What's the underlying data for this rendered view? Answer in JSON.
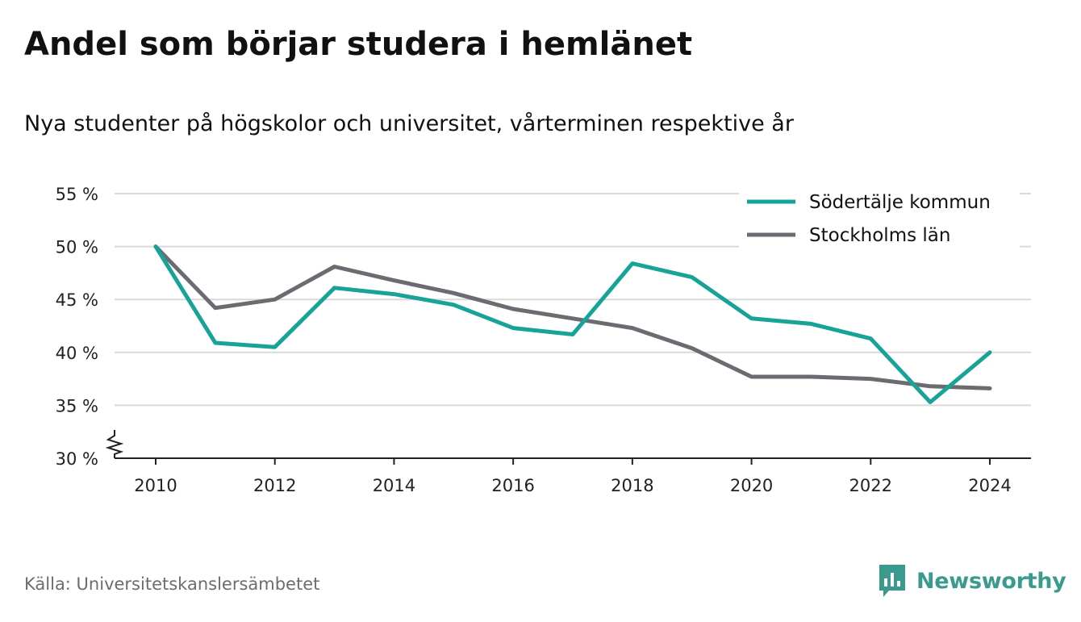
{
  "chart_data": {
    "type": "line",
    "title": "Andel som börjar studera i hemlänet",
    "subtitle": "Nya studenter på högskolor och universitet, vårterminen respektive år",
    "x": [
      2010,
      2011,
      2012,
      2013,
      2014,
      2015,
      2016,
      2017,
      2018,
      2019,
      2020,
      2021,
      2022,
      2023,
      2024
    ],
    "series": [
      {
        "name": "Södertälje kommun",
        "color": "#17a398",
        "values": [
          50.0,
          40.9,
          40.5,
          46.1,
          45.5,
          44.5,
          42.3,
          41.7,
          48.4,
          47.1,
          43.2,
          42.7,
          41.3,
          35.3,
          40.0
        ]
      },
      {
        "name": "Stockholms län",
        "color": "#6c6b72",
        "values": [
          50.0,
          44.2,
          45.0,
          48.1,
          46.8,
          45.6,
          44.1,
          43.2,
          42.3,
          40.4,
          37.7,
          37.7,
          37.5,
          36.8,
          36.6
        ]
      }
    ],
    "xticks": [
      2010,
      2012,
      2014,
      2016,
      2018,
      2020,
      2022,
      2024
    ],
    "yticks": [
      30,
      35,
      40,
      45,
      50,
      55
    ],
    "ytick_labels": [
      "30 %",
      "35 %",
      "40 %",
      "45 %",
      "50 %",
      "55 %"
    ],
    "ylim": [
      30,
      55
    ],
    "xlim": [
      2009.3,
      2024.7
    ],
    "axis_break": true,
    "grid": true,
    "legend_position": "top-right",
    "xlabel": "",
    "ylabel": ""
  },
  "footer": {
    "source": "Källa: Universitetskanslersämbetet",
    "brand": "Newsworthy",
    "brand_color": "#3a9a8e"
  }
}
